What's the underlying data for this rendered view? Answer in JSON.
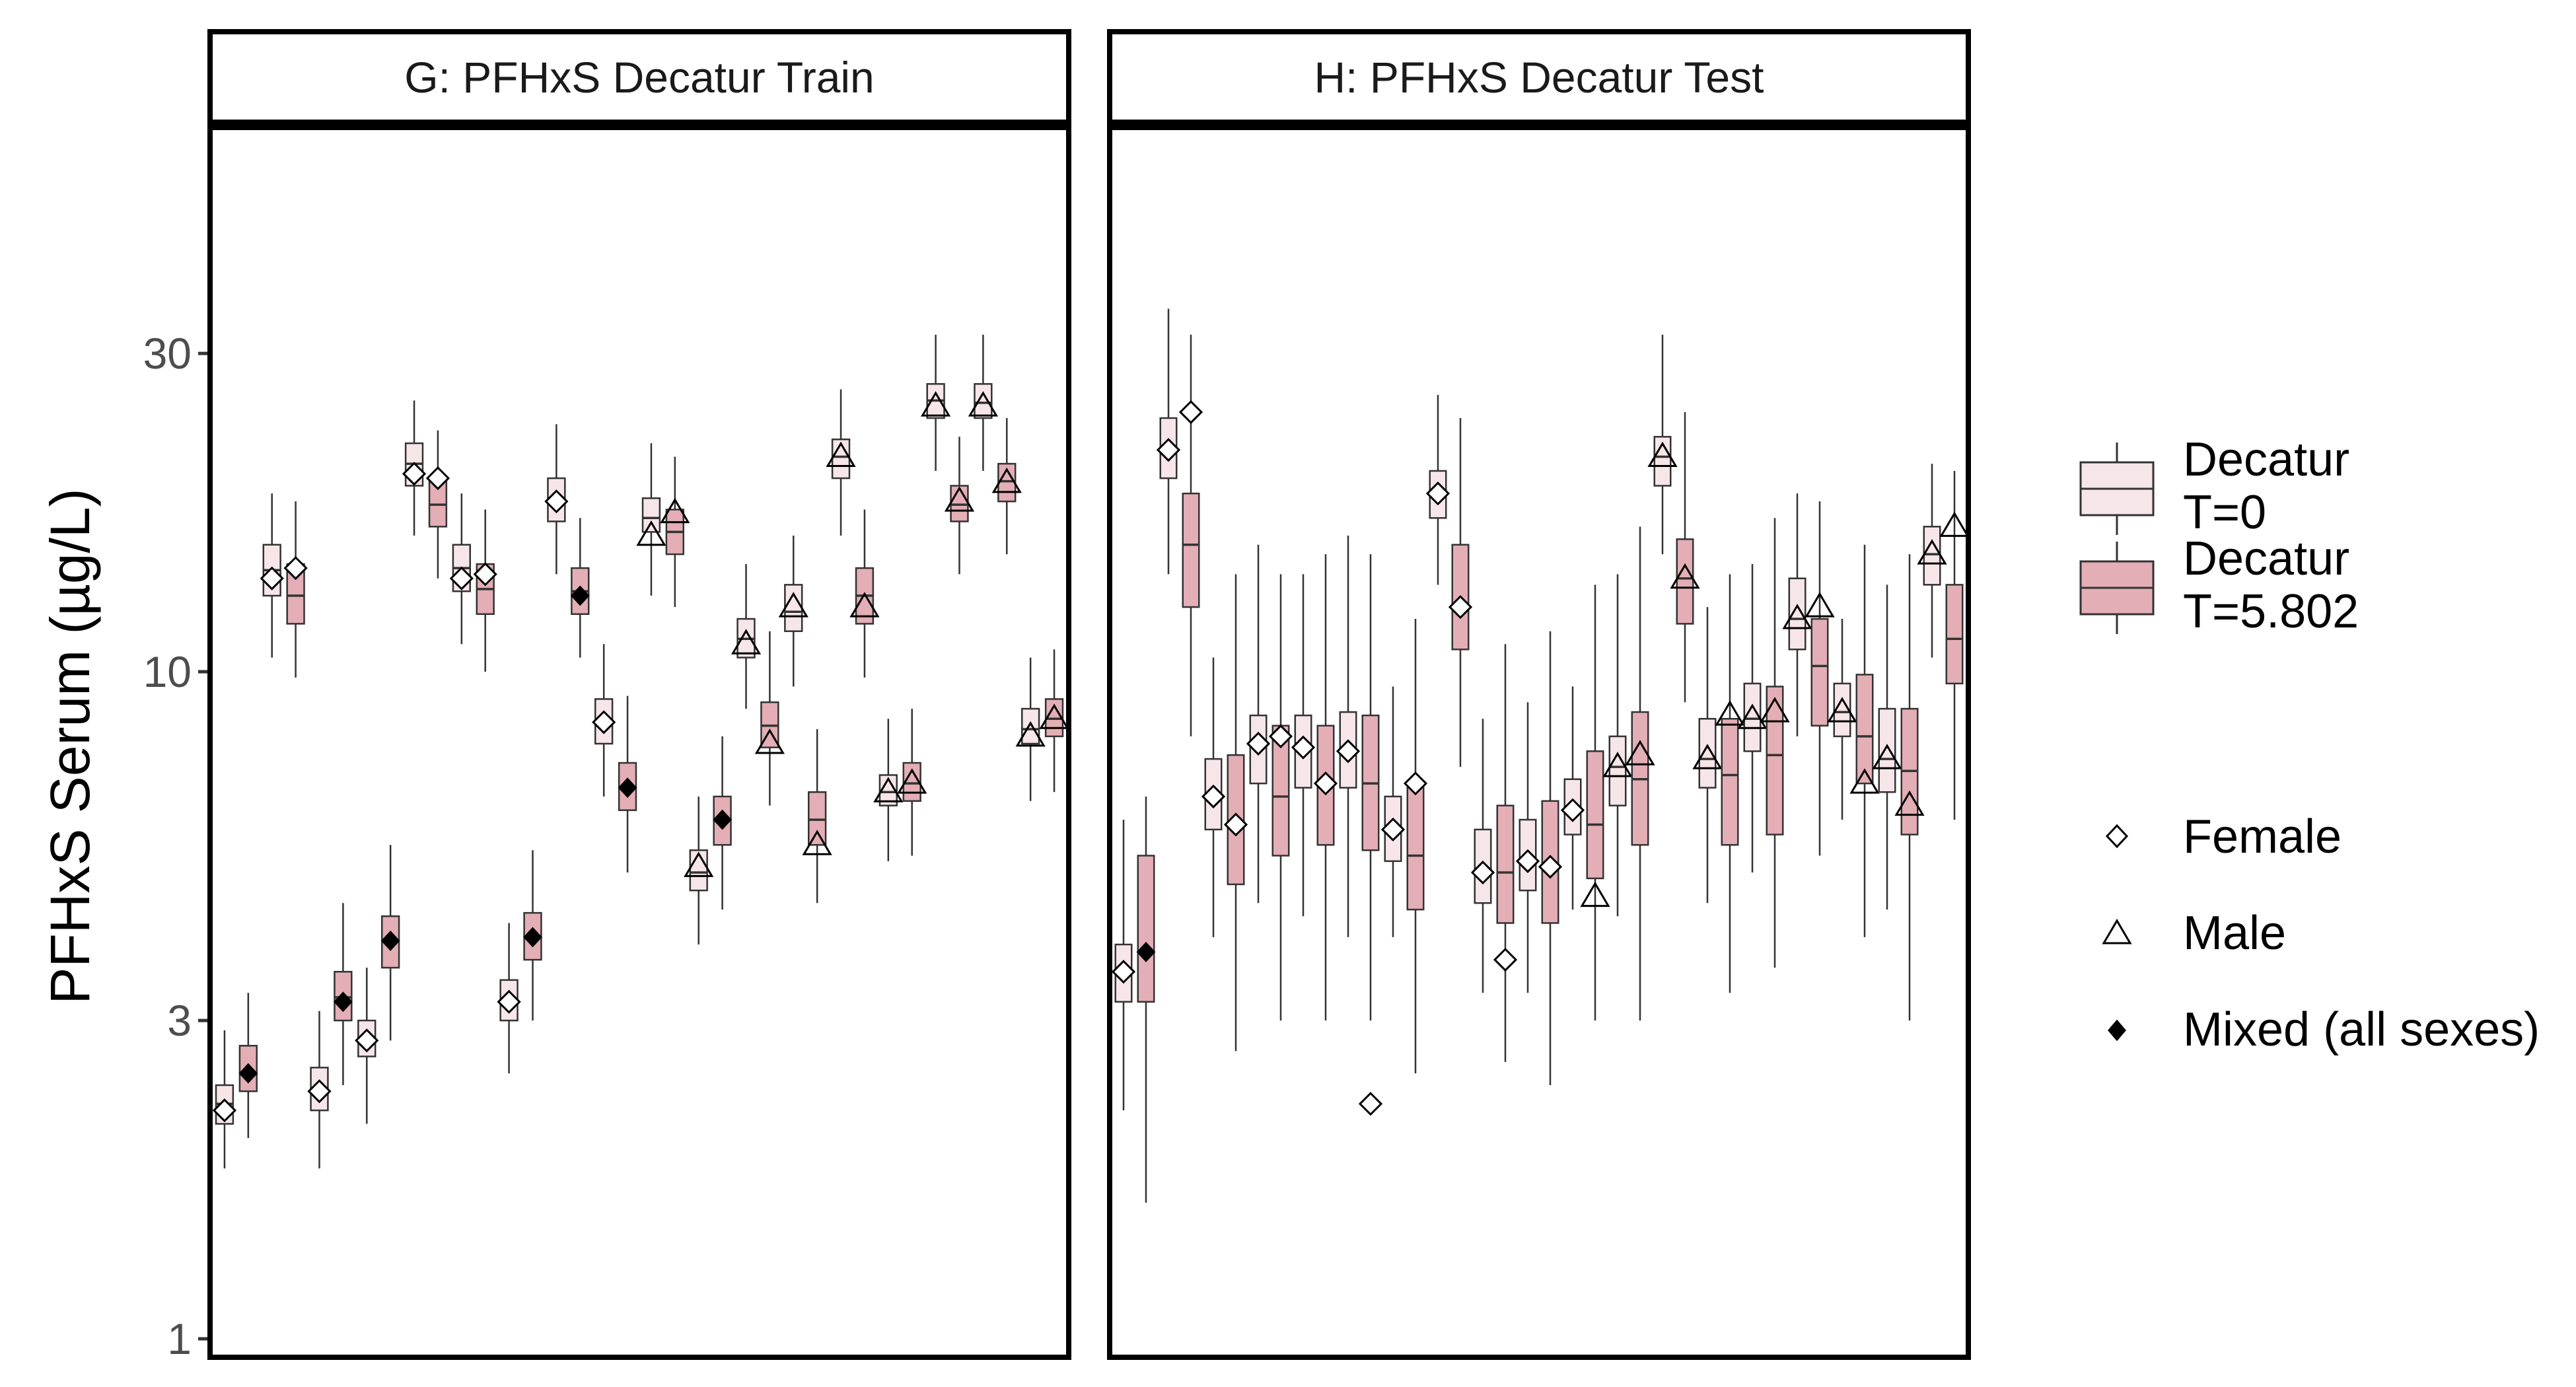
{
  "chart_data": [
    {
      "type": "box",
      "title": "G: PFHxS Decatur Train",
      "ylabel": "PFHxS Serum (µg/L)",
      "yscale": "log",
      "ylim": [
        1,
        100
      ],
      "yticks": [
        1,
        3,
        10,
        30
      ],
      "ytick_labels": [
        "1",
        "3",
        "10",
        "30"
      ],
      "boxes": [
        {
          "group": "Decatur T=0",
          "q1": 2.1,
          "median": 2.25,
          "q3": 2.4,
          "wlo": 1.8,
          "whi": 2.9
        },
        {
          "group": "Decatur T=5.802",
          "q1": 2.35,
          "median": 2.5,
          "q3": 2.75,
          "wlo": 2.0,
          "whi": 3.3
        },
        {
          "group": "Decatur T=0",
          "q1": 13.0,
          "median": 14.2,
          "q3": 15.5,
          "wlo": 10.5,
          "whi": 18.5
        },
        {
          "group": "Decatur T=5.802",
          "q1": 11.8,
          "median": 13.0,
          "q3": 14.5,
          "wlo": 9.8,
          "whi": 18.0
        },
        {
          "group": "Decatur T=0",
          "q1": 2.2,
          "median": 2.35,
          "q3": 2.55,
          "wlo": 1.8,
          "whi": 3.1
        },
        {
          "group": "Decatur T=5.802",
          "q1": 3.0,
          "median": 3.25,
          "q3": 3.55,
          "wlo": 2.4,
          "whi": 4.5
        },
        {
          "group": "Decatur T=0",
          "q1": 2.65,
          "median": 2.8,
          "q3": 3.0,
          "wlo": 2.1,
          "whi": 3.6
        },
        {
          "group": "Decatur T=5.802",
          "q1": 3.6,
          "median": 3.95,
          "q3": 4.3,
          "wlo": 2.8,
          "whi": 5.5
        },
        {
          "group": "Decatur T=0",
          "q1": 19.0,
          "median": 20.5,
          "q3": 22.0,
          "wlo": 16.0,
          "whi": 25.5
        },
        {
          "group": "Decatur T=5.802",
          "q1": 16.5,
          "median": 17.8,
          "q3": 19.5,
          "wlo": 13.8,
          "whi": 23.0
        },
        {
          "group": "Decatur T=0",
          "q1": 13.2,
          "median": 14.3,
          "q3": 15.5,
          "wlo": 11.0,
          "whi": 18.5
        },
        {
          "group": "Decatur T=5.802",
          "q1": 12.2,
          "median": 13.3,
          "q3": 14.5,
          "wlo": 10.0,
          "whi": 17.5
        },
        {
          "group": "Decatur T=0",
          "q1": 3.0,
          "median": 3.2,
          "q3": 3.45,
          "wlo": 2.5,
          "whi": 4.2
        },
        {
          "group": "Decatur T=5.802",
          "q1": 3.7,
          "median": 4.0,
          "q3": 4.35,
          "wlo": 3.0,
          "whi": 5.4
        },
        {
          "group": "Decatur T=0",
          "q1": 16.8,
          "median": 18.2,
          "q3": 19.5,
          "wlo": 14.0,
          "whi": 23.5
        },
        {
          "group": "Decatur T=5.802",
          "q1": 12.2,
          "median": 13.2,
          "q3": 14.3,
          "wlo": 10.5,
          "whi": 17.0
        },
        {
          "group": "Decatur T=0",
          "q1": 7.8,
          "median": 8.4,
          "q3": 9.1,
          "wlo": 6.5,
          "whi": 11.0
        },
        {
          "group": "Decatur T=5.802",
          "q1": 6.2,
          "median": 6.7,
          "q3": 7.3,
          "wlo": 5.0,
          "whi": 9.2
        },
        {
          "group": "Decatur T=0",
          "q1": 16.2,
          "median": 17.0,
          "q3": 18.2,
          "wlo": 13.0,
          "whi": 22.0
        },
        {
          "group": "Decatur T=5.802",
          "q1": 15.0,
          "median": 16.2,
          "q3": 17.5,
          "wlo": 12.5,
          "whi": 21.0
        },
        {
          "group": "Decatur T=0",
          "q1": 4.7,
          "median": 5.0,
          "q3": 5.4,
          "wlo": 3.9,
          "whi": 6.5
        },
        {
          "group": "Decatur T=5.802",
          "q1": 5.5,
          "median": 6.0,
          "q3": 6.5,
          "wlo": 4.4,
          "whi": 8.0
        },
        {
          "group": "Decatur T=0",
          "q1": 10.5,
          "median": 11.2,
          "q3": 12.0,
          "wlo": 8.8,
          "whi": 14.5
        },
        {
          "group": "Decatur T=5.802",
          "q1": 7.7,
          "median": 8.3,
          "q3": 9.0,
          "wlo": 6.3,
          "whi": 11.5
        },
        {
          "group": "Decatur T=0",
          "q1": 11.5,
          "median": 12.3,
          "q3": 13.5,
          "wlo": 9.5,
          "whi": 16.0
        },
        {
          "group": "Decatur T=5.802",
          "q1": 5.5,
          "median": 6.0,
          "q3": 6.6,
          "wlo": 4.5,
          "whi": 8.2
        },
        {
          "group": "Decatur T=0",
          "q1": 19.5,
          "median": 21.0,
          "q3": 22.3,
          "wlo": 16.0,
          "whi": 26.5
        },
        {
          "group": "Decatur T=5.802",
          "q1": 11.8,
          "median": 13.0,
          "q3": 14.3,
          "wlo": 9.8,
          "whi": 17.5
        },
        {
          "group": "Decatur T=0",
          "q1": 6.3,
          "median": 6.6,
          "q3": 7.0,
          "wlo": 5.2,
          "whi": 8.5
        },
        {
          "group": "Decatur T=5.802",
          "q1": 6.4,
          "median": 6.8,
          "q3": 7.3,
          "wlo": 5.3,
          "whi": 8.8
        },
        {
          "group": "Decatur T=0",
          "q1": 24.0,
          "median": 25.5,
          "q3": 27.0,
          "wlo": 20.0,
          "whi": 32.0
        },
        {
          "group": "Decatur T=5.802",
          "q1": 16.8,
          "median": 17.8,
          "q3": 19.0,
          "wlo": 14.0,
          "whi": 22.5
        },
        {
          "group": "Decatur T=0",
          "q1": 24.0,
          "median": 25.3,
          "q3": 27.0,
          "wlo": 20.0,
          "whi": 32.0
        },
        {
          "group": "Decatur T=5.802",
          "q1": 18.0,
          "median": 19.3,
          "q3": 20.5,
          "wlo": 15.0,
          "whi": 24.0
        },
        {
          "group": "Decatur T=0",
          "q1": 7.8,
          "median": 8.2,
          "q3": 8.8,
          "wlo": 6.4,
          "whi": 10.5
        },
        {
          "group": "Decatur T=5.802",
          "q1": 8.0,
          "median": 8.5,
          "q3": 9.1,
          "wlo": 6.6,
          "whi": 10.8
        }
      ],
      "points": [
        {
          "sex": "Female",
          "value": 2.2
        },
        {
          "sex": "Mixed",
          "value": 2.5
        },
        {
          "sex": "Female",
          "value": 13.8
        },
        {
          "sex": "Female",
          "value": 14.3
        },
        {
          "sex": "Female",
          "value": 2.35
        },
        {
          "sex": "Mixed",
          "value": 3.2
        },
        {
          "sex": "Female",
          "value": 2.8
        },
        {
          "sex": "Mixed",
          "value": 3.95
        },
        {
          "sex": "Female",
          "value": 19.8
        },
        {
          "sex": "Female",
          "value": 19.5
        },
        {
          "sex": "Female",
          "value": 13.8
        },
        {
          "sex": "Female",
          "value": 14.0
        },
        {
          "sex": "Female",
          "value": 3.2
        },
        {
          "sex": "Mixed",
          "value": 4.0
        },
        {
          "sex": "Female",
          "value": 18.0
        },
        {
          "sex": "Mixed",
          "value": 13.0
        },
        {
          "sex": "Female",
          "value": 8.4
        },
        {
          "sex": "Mixed",
          "value": 6.7
        },
        {
          "sex": "Male",
          "value": 16.0
        },
        {
          "sex": "Male",
          "value": 17.3
        },
        {
          "sex": "Male",
          "value": 5.1
        },
        {
          "sex": "Mixed",
          "value": 6.0
        },
        {
          "sex": "Male",
          "value": 11.0
        },
        {
          "sex": "Male",
          "value": 7.8
        },
        {
          "sex": "Male",
          "value": 12.5
        },
        {
          "sex": "Male",
          "value": 5.5
        },
        {
          "sex": "Male",
          "value": 21.0
        },
        {
          "sex": "Male",
          "value": 12.5
        },
        {
          "sex": "Male",
          "value": 6.6
        },
        {
          "sex": "Male",
          "value": 6.8
        },
        {
          "sex": "Male",
          "value": 25.0
        },
        {
          "sex": "Male",
          "value": 18.0
        },
        {
          "sex": "Male",
          "value": 25.0
        },
        {
          "sex": "Male",
          "value": 19.2
        },
        {
          "sex": "Male",
          "value": 8.0
        },
        {
          "sex": "Male",
          "value": 8.5
        }
      ]
    },
    {
      "type": "box",
      "title": "H: PFHxS Decatur Test",
      "yscale": "log",
      "ylim": [
        1,
        100
      ],
      "boxes": [
        {
          "group": "Decatur T=0",
          "q1": 3.2,
          "median": 3.55,
          "q3": 3.9,
          "wlo": 2.2,
          "whi": 6.0
        },
        {
          "group": "Decatur T=5.802",
          "q1": 3.2,
          "median": 3.8,
          "q3": 5.3,
          "wlo": 1.6,
          "whi": 6.5
        },
        {
          "group": "Decatur T=0",
          "q1": 19.5,
          "median": 21.5,
          "q3": 24.0,
          "wlo": 14.0,
          "whi": 35.0
        },
        {
          "group": "Decatur T=5.802",
          "q1": 12.5,
          "median": 15.5,
          "q3": 18.5,
          "wlo": 8.0,
          "whi": 32.0
        },
        {
          "group": "Decatur T=0",
          "q1": 5.8,
          "median": 6.5,
          "q3": 7.4,
          "wlo": 4.0,
          "whi": 10.5
        },
        {
          "group": "Decatur T=5.802",
          "q1": 4.8,
          "median": 5.9,
          "q3": 7.5,
          "wlo": 2.7,
          "whi": 14.0
        },
        {
          "group": "Decatur T=0",
          "q1": 6.8,
          "median": 7.8,
          "q3": 8.6,
          "wlo": 4.5,
          "whi": 15.5
        },
        {
          "group": "Decatur T=5.802",
          "q1": 5.3,
          "median": 6.5,
          "q3": 8.3,
          "wlo": 3.0,
          "whi": 14.0
        },
        {
          "group": "Decatur T=0",
          "q1": 6.7,
          "median": 7.7,
          "q3": 8.6,
          "wlo": 4.3,
          "whi": 14.0
        },
        {
          "group": "Decatur T=5.802",
          "q1": 5.5,
          "median": 6.8,
          "q3": 8.3,
          "wlo": 3.0,
          "whi": 15.0
        },
        {
          "group": "Decatur T=0",
          "q1": 6.7,
          "median": 7.6,
          "q3": 8.7,
          "wlo": 4.0,
          "whi": 16.0
        },
        {
          "group": "Decatur T=5.802",
          "q1": 5.4,
          "median": 6.8,
          "q3": 8.6,
          "wlo": 3.0,
          "whi": 15.0
        },
        {
          "group": "Decatur T=0",
          "q1": 5.2,
          "median": 5.8,
          "q3": 6.5,
          "wlo": 4.0,
          "whi": 9.5
        },
        {
          "group": "Decatur T=5.802",
          "q1": 4.4,
          "median": 5.3,
          "q3": 6.7,
          "wlo": 2.5,
          "whi": 12.0
        },
        {
          "group": "Decatur T=0",
          "q1": 17.0,
          "median": 18.5,
          "q3": 20.0,
          "wlo": 13.5,
          "whi": 26.0
        },
        {
          "group": "Decatur T=5.802",
          "q1": 10.8,
          "median": 12.5,
          "q3": 15.5,
          "wlo": 7.2,
          "whi": 24.0
        },
        {
          "group": "Decatur T=0",
          "q1": 4.5,
          "median": 5.0,
          "q3": 5.8,
          "wlo": 3.3,
          "whi": 8.5
        },
        {
          "group": "Decatur T=5.802",
          "q1": 4.2,
          "median": 5.0,
          "q3": 6.3,
          "wlo": 2.6,
          "whi": 11.0
        },
        {
          "group": "Decatur T=0",
          "q1": 4.7,
          "median": 5.2,
          "q3": 6.0,
          "wlo": 3.3,
          "whi": 9.0
        },
        {
          "group": "Decatur T=5.802",
          "q1": 4.2,
          "median": 5.1,
          "q3": 6.4,
          "wlo": 2.4,
          "whi": 11.5
        },
        {
          "group": "Decatur T=0",
          "q1": 5.7,
          "median": 6.2,
          "q3": 6.9,
          "wlo": 4.4,
          "whi": 9.5
        },
        {
          "group": "Decatur T=5.802",
          "q1": 4.9,
          "median": 5.9,
          "q3": 7.6,
          "wlo": 3.0,
          "whi": 13.5
        },
        {
          "group": "Decatur T=0",
          "q1": 6.3,
          "median": 7.2,
          "q3": 8.0,
          "wlo": 4.3,
          "whi": 14.0
        },
        {
          "group": "Decatur T=5.802",
          "q1": 5.5,
          "median": 6.9,
          "q3": 8.7,
          "wlo": 3.0,
          "whi": 16.5
        },
        {
          "group": "Decatur T=0",
          "q1": 19.0,
          "median": 21.0,
          "q3": 22.5,
          "wlo": 15.0,
          "whi": 32.0
        },
        {
          "group": "Decatur T=5.802",
          "q1": 11.8,
          "median": 13.8,
          "q3": 15.8,
          "wlo": 9.0,
          "whi": 24.5
        },
        {
          "group": "Decatur T=0",
          "q1": 6.7,
          "median": 7.4,
          "q3": 8.5,
          "wlo": 4.5,
          "whi": 12.5
        },
        {
          "group": "Decatur T=5.802",
          "q1": 5.5,
          "median": 7.0,
          "q3": 8.5,
          "wlo": 3.3,
          "whi": 14.0
        },
        {
          "group": "Decatur T=0",
          "q1": 7.6,
          "median": 8.5,
          "q3": 9.6,
          "wlo": 5.0,
          "whi": 14.5
        },
        {
          "group": "Decatur T=5.802",
          "q1": 5.7,
          "median": 7.5,
          "q3": 9.5,
          "wlo": 3.6,
          "whi": 17.0
        },
        {
          "group": "Decatur T=0",
          "q1": 10.8,
          "median": 12.0,
          "q3": 13.8,
          "wlo": 8.0,
          "whi": 18.5
        },
        {
          "group": "Decatur T=5.802",
          "q1": 8.3,
          "median": 10.2,
          "q3": 12.0,
          "wlo": 5.3,
          "whi": 18.0
        },
        {
          "group": "Decatur T=0",
          "q1": 8.0,
          "median": 8.7,
          "q3": 9.6,
          "wlo": 6.0,
          "whi": 12.0
        },
        {
          "group": "Decatur T=5.802",
          "q1": 6.8,
          "median": 8.0,
          "q3": 9.9,
          "wlo": 4.0,
          "whi": 15.5
        },
        {
          "group": "Decatur T=0",
          "q1": 6.6,
          "median": 7.4,
          "q3": 8.8,
          "wlo": 4.4,
          "whi": 13.5
        },
        {
          "group": "Decatur T=5.802",
          "q1": 5.7,
          "median": 7.1,
          "q3": 8.8,
          "wlo": 3.0,
          "whi": 15.0
        },
        {
          "group": "Decatur T=0",
          "q1": 13.5,
          "median": 15.0,
          "q3": 16.5,
          "wlo": 10.5,
          "whi": 20.5
        },
        {
          "group": "Decatur T=5.802",
          "q1": 9.6,
          "median": 11.2,
          "q3": 13.5,
          "wlo": 6.0,
          "whi": 20.0
        }
      ],
      "points": [
        {
          "sex": "Female",
          "value": 3.55
        },
        {
          "sex": "Mixed",
          "value": 3.8
        },
        {
          "sex": "Female",
          "value": 21.5
        },
        {
          "sex": "Female",
          "value": 24.5
        },
        {
          "sex": "Female",
          "value": 6.5
        },
        {
          "sex": "Female",
          "value": 5.9
        },
        {
          "sex": "Female",
          "value": 7.8
        },
        {
          "sex": "Female",
          "value": 8.0
        },
        {
          "sex": "Female",
          "value": 7.7
        },
        {
          "sex": "Female",
          "value": 6.8
        },
        {
          "sex": "Female",
          "value": 7.6
        },
        {
          "sex": "Female",
          "value": 2.25
        },
        {
          "sex": "Female",
          "value": 5.8
        },
        {
          "sex": "Female",
          "value": 6.8
        },
        {
          "sex": "Female",
          "value": 18.5
        },
        {
          "sex": "Female",
          "value": 12.5
        },
        {
          "sex": "Female",
          "value": 5.0
        },
        {
          "sex": "Female",
          "value": 3.7
        },
        {
          "sex": "Female",
          "value": 5.2
        },
        {
          "sex": "Female",
          "value": 5.1
        },
        {
          "sex": "Female",
          "value": 6.2
        },
        {
          "sex": "Male",
          "value": 4.6
        },
        {
          "sex": "Male",
          "value": 7.2
        },
        {
          "sex": "Male",
          "value": 7.5
        },
        {
          "sex": "Male",
          "value": 21.0
        },
        {
          "sex": "Male",
          "value": 13.8
        },
        {
          "sex": "Male",
          "value": 7.4
        },
        {
          "sex": "Male",
          "value": 8.6
        },
        {
          "sex": "Male",
          "value": 8.5
        },
        {
          "sex": "Male",
          "value": 8.7
        },
        {
          "sex": "Male",
          "value": 12.0
        },
        {
          "sex": "Male",
          "value": 12.5
        },
        {
          "sex": "Male",
          "value": 8.7
        },
        {
          "sex": "Male",
          "value": 6.8
        },
        {
          "sex": "Male",
          "value": 7.4
        },
        {
          "sex": "Male",
          "value": 6.3
        },
        {
          "sex": "Male",
          "value": 15.0
        },
        {
          "sex": "Male",
          "value": 16.5
        }
      ]
    }
  ],
  "legend": {
    "fill": [
      {
        "line1": "Decatur",
        "line2": "T=0",
        "color": "#f7e6e9"
      },
      {
        "line1": "Decatur",
        "line2": "T=5.802",
        "color": "#e3aeb5"
      }
    ],
    "shape": [
      {
        "label": "Female",
        "shape": "diamond-open"
      },
      {
        "label": "Male",
        "shape": "triangle-open"
      },
      {
        "label": "Mixed (all sexes)",
        "shape": "diamond-filled"
      }
    ]
  }
}
